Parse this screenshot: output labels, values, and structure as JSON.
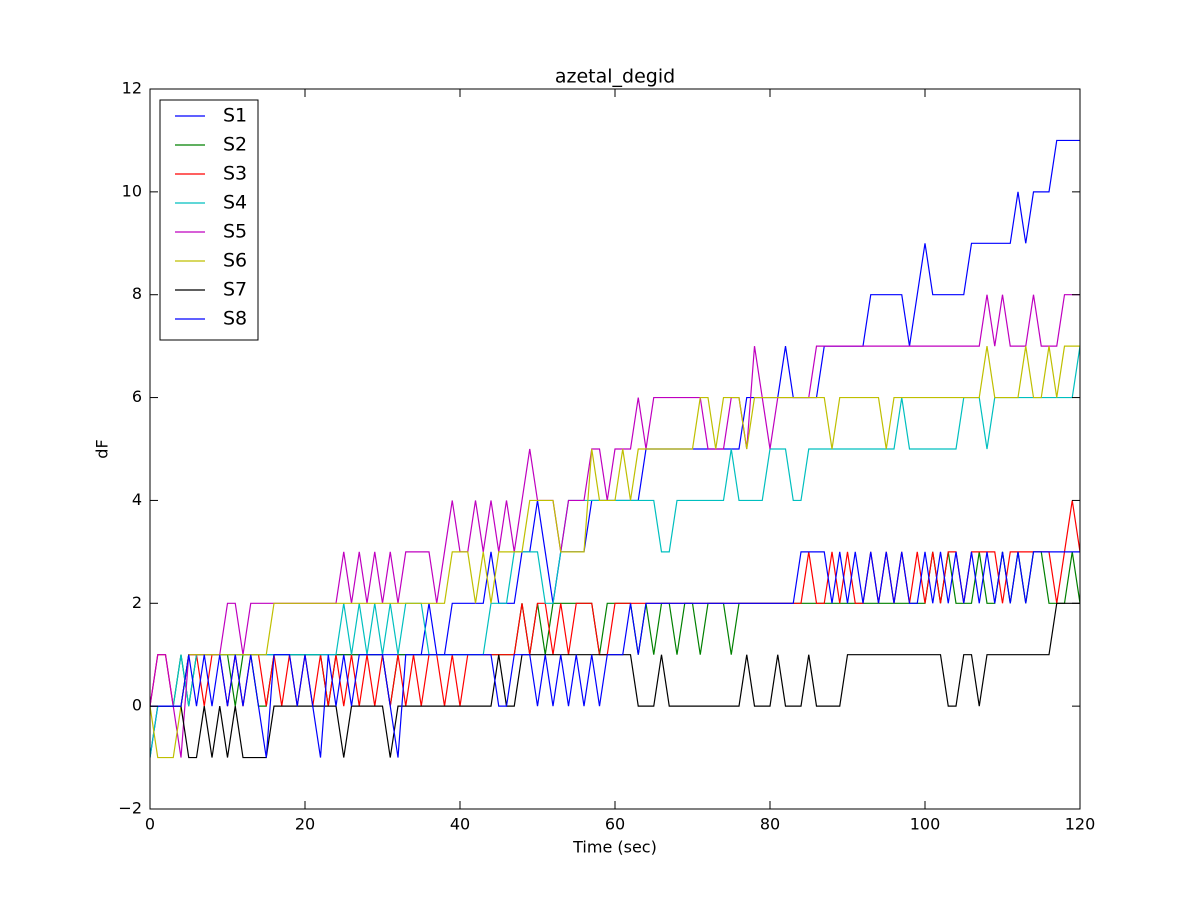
{
  "chart_data": {
    "type": "line",
    "title": "azetal_degid",
    "x_label": "Time (sec)",
    "y_label": "dF",
    "xlim": [
      0,
      120
    ],
    "xticks": [
      0,
      20,
      40,
      60,
      80,
      100,
      120
    ],
    "ylim": [
      -2,
      12
    ],
    "yticks": [
      {
        "value": -2,
        "label": "−2"
      },
      0,
      2,
      4,
      6,
      8,
      10,
      12
    ],
    "legend": "upper left",
    "x": [
      0,
      1,
      2,
      3,
      4,
      5,
      6,
      7,
      8,
      9,
      10,
      11,
      12,
      13,
      14,
      15,
      16,
      17,
      18,
      19,
      20,
      21,
      22,
      23,
      24,
      25,
      26,
      27,
      28,
      29,
      30,
      31,
      32,
      33,
      34,
      35,
      36,
      37,
      38,
      39,
      40,
      41,
      42,
      43,
      44,
      45,
      46,
      47,
      48,
      49,
      50,
      51,
      52,
      53,
      54,
      55,
      56,
      57,
      58,
      59,
      60,
      61,
      62,
      63,
      64,
      65,
      66,
      67,
      68,
      69,
      70,
      71,
      72,
      73,
      74,
      75,
      76,
      77,
      78,
      79,
      80,
      81,
      82,
      83,
      84,
      85,
      86,
      87,
      88,
      89,
      90,
      91,
      92,
      93,
      94,
      95,
      96,
      97,
      98,
      99,
      100,
      101,
      102,
      103,
      104,
      105,
      106,
      107,
      108,
      109,
      110,
      111,
      112,
      113,
      114,
      115,
      116,
      117,
      118,
      119,
      120
    ],
    "series": [
      {
        "name": "S1",
        "color": "#0000ff",
        "values": [
          -1,
          0,
          0,
          0,
          0,
          1,
          1,
          1,
          1,
          1,
          1,
          1,
          1,
          1,
          1,
          1,
          1,
          1,
          1,
          1,
          1,
          1,
          1,
          1,
          1,
          1,
          1,
          1,
          1,
          1,
          1,
          1,
          1,
          1,
          1,
          1,
          2,
          1,
          1,
          2,
          2,
          2,
          2,
          2,
          3,
          2,
          2,
          2,
          3,
          3,
          4,
          3,
          2,
          3,
          3,
          3,
          3,
          4,
          4,
          4,
          4,
          4,
          4,
          4,
          5,
          5,
          5,
          5,
          5,
          5,
          5,
          5,
          5,
          5,
          5,
          5,
          5,
          6,
          6,
          6,
          6,
          6,
          7,
          6,
          6,
          6,
          6,
          7,
          7,
          7,
          7,
          7,
          7,
          8,
          8,
          8,
          8,
          8,
          7,
          8,
          9,
          8,
          8,
          8,
          8,
          8,
          9,
          9,
          9,
          9,
          9,
          9,
          10,
          9,
          10,
          10,
          10,
          11,
          11,
          11,
          11
        ]
      },
      {
        "name": "S2",
        "color": "#008000",
        "values": [
          0,
          0,
          0,
          0,
          1,
          0,
          1,
          1,
          1,
          1,
          1,
          0,
          1,
          1,
          0,
          0,
          1,
          1,
          1,
          1,
          1,
          1,
          1,
          0,
          1,
          1,
          1,
          1,
          1,
          1,
          1,
          0,
          1,
          1,
          1,
          1,
          1,
          1,
          1,
          1,
          1,
          1,
          1,
          1,
          1,
          1,
          1,
          1,
          2,
          1,
          2,
          1,
          2,
          2,
          2,
          2,
          2,
          2,
          1,
          2,
          2,
          2,
          2,
          1,
          2,
          1,
          2,
          2,
          1,
          2,
          2,
          1,
          2,
          2,
          2,
          1,
          2,
          2,
          2,
          2,
          2,
          2,
          2,
          2,
          2,
          2,
          2,
          2,
          2,
          2,
          2,
          2,
          2,
          2,
          2,
          2,
          2,
          2,
          2,
          2,
          2,
          3,
          2,
          3,
          2,
          2,
          2,
          3,
          2,
          2,
          3,
          2,
          3,
          2,
          3,
          3,
          2,
          2,
          2,
          3,
          2
        ]
      },
      {
        "name": "S3",
        "color": "#ff0000",
        "values": [
          0,
          1,
          1,
          0,
          0,
          1,
          1,
          0,
          1,
          1,
          0,
          1,
          0,
          1,
          1,
          0,
          1,
          0,
          1,
          0,
          1,
          0,
          1,
          0,
          1,
          0,
          1,
          0,
          1,
          0,
          1,
          0,
          1,
          0,
          1,
          0,
          1,
          1,
          0,
          1,
          0,
          1,
          1,
          1,
          1,
          1,
          1,
          1,
          2,
          1,
          2,
          2,
          1,
          2,
          1,
          2,
          2,
          2,
          1,
          1,
          2,
          2,
          2,
          2,
          2,
          2,
          2,
          2,
          2,
          2,
          2,
          2,
          2,
          2,
          2,
          2,
          2,
          2,
          2,
          2,
          2,
          2,
          2,
          2,
          2,
          3,
          2,
          2,
          3,
          2,
          3,
          2,
          2,
          3,
          2,
          3,
          2,
          3,
          2,
          3,
          2,
          3,
          2,
          3,
          3,
          2,
          3,
          3,
          3,
          3,
          2,
          3,
          3,
          3,
          3,
          3,
          3,
          2,
          3,
          4,
          3
        ]
      },
      {
        "name": "S4",
        "color": "#00bfbf",
        "values": [
          -1,
          0,
          0,
          0,
          1,
          0,
          1,
          1,
          1,
          1,
          1,
          1,
          1,
          1,
          1,
          1,
          1,
          1,
          1,
          1,
          1,
          1,
          1,
          1,
          1,
          2,
          1,
          2,
          1,
          2,
          1,
          2,
          1,
          2,
          2,
          2,
          1,
          1,
          1,
          1,
          1,
          1,
          1,
          1,
          2,
          2,
          2,
          3,
          3,
          3,
          3,
          2,
          2,
          3,
          4,
          4,
          4,
          4,
          4,
          4,
          4,
          4,
          4,
          4,
          4,
          4,
          3,
          3,
          4,
          4,
          4,
          4,
          4,
          4,
          4,
          5,
          4,
          4,
          4,
          4,
          5,
          5,
          5,
          4,
          4,
          5,
          5,
          5,
          5,
          5,
          5,
          5,
          5,
          5,
          5,
          5,
          5,
          6,
          5,
          5,
          5,
          5,
          5,
          5,
          5,
          6,
          6,
          6,
          5,
          6,
          6,
          6,
          6,
          6,
          6,
          6,
          6,
          6,
          6,
          6,
          7
        ]
      },
      {
        "name": "S5",
        "color": "#bf00bf",
        "values": [
          0,
          1,
          1,
          0,
          -1,
          1,
          1,
          1,
          1,
          1,
          2,
          2,
          1,
          2,
          2,
          2,
          2,
          2,
          2,
          2,
          2,
          2,
          2,
          2,
          2,
          3,
          2,
          3,
          2,
          3,
          2,
          3,
          2,
          3,
          3,
          3,
          3,
          2,
          3,
          4,
          3,
          3,
          4,
          3,
          4,
          3,
          4,
          3,
          4,
          5,
          4,
          4,
          4,
          3,
          4,
          4,
          4,
          5,
          5,
          4,
          5,
          5,
          5,
          6,
          5,
          6,
          6,
          6,
          6,
          6,
          6,
          6,
          5,
          5,
          5,
          6,
          6,
          5,
          7,
          6,
          5,
          6,
          6,
          6,
          6,
          6,
          7,
          7,
          7,
          7,
          7,
          7,
          7,
          7,
          7,
          7,
          7,
          7,
          7,
          7,
          7,
          7,
          7,
          7,
          7,
          7,
          7,
          7,
          8,
          7,
          8,
          7,
          7,
          7,
          8,
          7,
          7,
          7,
          8,
          8,
          8
        ]
      },
      {
        "name": "S6",
        "color": "#bfbf00",
        "values": [
          0,
          -1,
          -1,
          -1,
          0,
          1,
          1,
          1,
          1,
          1,
          1,
          1,
          1,
          1,
          1,
          1,
          2,
          2,
          2,
          2,
          2,
          2,
          2,
          2,
          2,
          2,
          2,
          2,
          2,
          2,
          2,
          2,
          2,
          2,
          2,
          2,
          2,
          2,
          2,
          3,
          3,
          3,
          2,
          3,
          2,
          3,
          3,
          3,
          3,
          4,
          4,
          4,
          4,
          3,
          3,
          3,
          3,
          5,
          4,
          4,
          4,
          5,
          4,
          5,
          5,
          5,
          5,
          5,
          5,
          5,
          5,
          6,
          6,
          5,
          6,
          6,
          6,
          5,
          6,
          6,
          6,
          6,
          6,
          6,
          6,
          6,
          6,
          6,
          5,
          6,
          6,
          6,
          6,
          6,
          6,
          5,
          6,
          6,
          6,
          6,
          6,
          6,
          6,
          6,
          6,
          6,
          6,
          6,
          7,
          6,
          6,
          6,
          6,
          7,
          6,
          6,
          7,
          6,
          7,
          7,
          7
        ]
      },
      {
        "name": "S7",
        "color": "#000000",
        "values": [
          0,
          0,
          0,
          0,
          0,
          -1,
          -1,
          0,
          -1,
          0,
          -1,
          0,
          -1,
          -1,
          -1,
          -1,
          0,
          0,
          0,
          0,
          0,
          0,
          0,
          0,
          0,
          -1,
          0,
          0,
          0,
          0,
          0,
          -1,
          0,
          0,
          0,
          0,
          0,
          0,
          0,
          0,
          0,
          0,
          0,
          0,
          0,
          1,
          0,
          0,
          1,
          1,
          1,
          1,
          1,
          1,
          1,
          1,
          1,
          1,
          1,
          1,
          1,
          1,
          1,
          0,
          0,
          0,
          1,
          0,
          0,
          0,
          0,
          0,
          0,
          0,
          0,
          0,
          0,
          1,
          0,
          0,
          0,
          1,
          0,
          0,
          0,
          1,
          0,
          0,
          0,
          0,
          1,
          1,
          1,
          1,
          1,
          1,
          1,
          1,
          1,
          1,
          1,
          1,
          1,
          0,
          0,
          1,
          1,
          0,
          1,
          1,
          1,
          1,
          1,
          1,
          1,
          1,
          1,
          2,
          2,
          2,
          2
        ]
      },
      {
        "name": "S8",
        "color": "#0000ff",
        "values": [
          0,
          0,
          0,
          0,
          0,
          1,
          0,
          1,
          0,
          1,
          0,
          1,
          0,
          1,
          0,
          -1,
          1,
          1,
          1,
          0,
          1,
          0,
          -1,
          1,
          0,
          1,
          0,
          1,
          1,
          1,
          1,
          0,
          -1,
          1,
          1,
          1,
          1,
          1,
          1,
          1,
          1,
          1,
          1,
          1,
          1,
          0,
          0,
          1,
          1,
          1,
          0,
          1,
          0,
          1,
          0,
          1,
          0,
          1,
          0,
          1,
          1,
          1,
          2,
          1,
          2,
          2,
          2,
          2,
          2,
          2,
          2,
          2,
          2,
          2,
          2,
          2,
          2,
          2,
          2,
          2,
          2,
          2,
          2,
          2,
          3,
          3,
          3,
          3,
          2,
          3,
          2,
          3,
          2,
          3,
          2,
          3,
          2,
          3,
          2,
          2,
          3,
          2,
          3,
          2,
          3,
          2,
          3,
          2,
          3,
          2,
          3,
          2,
          3,
          2,
          3,
          3,
          3,
          3,
          3,
          3,
          3
        ]
      }
    ]
  }
}
